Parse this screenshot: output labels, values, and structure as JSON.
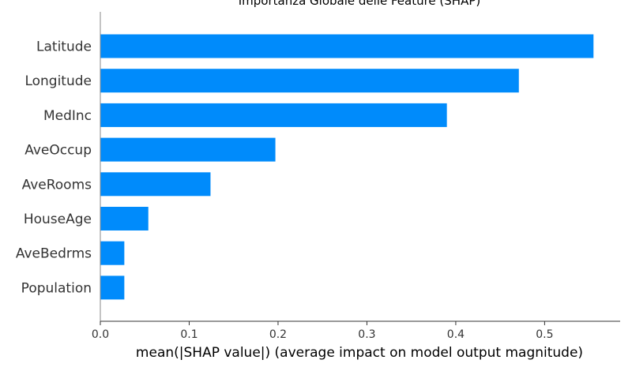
{
  "chart_data": {
    "type": "bar",
    "orientation": "horizontal",
    "title": "Importanza Globale delle Feature (SHAP)",
    "xlabel": "mean(|SHAP value|) (average impact on model output magnitude)",
    "ylabel": "",
    "categories": [
      "Latitude",
      "Longitude",
      "MedInc",
      "AveOccup",
      "AveRooms",
      "HouseAge",
      "AveBedrms",
      "Population"
    ],
    "values": [
      0.555,
      0.471,
      0.39,
      0.197,
      0.124,
      0.054,
      0.027,
      0.027
    ],
    "xlim": [
      0,
      0.585
    ],
    "xticks": [
      0.0,
      0.1,
      0.2,
      0.3,
      0.4,
      0.5
    ],
    "xtick_labels": [
      "0.0",
      "0.1",
      "0.2",
      "0.3",
      "0.4",
      "0.5"
    ],
    "grid": false,
    "colors": {
      "bar": "#008bfb",
      "axis": "#333333",
      "text": "#333333",
      "title": "#000000"
    }
  }
}
